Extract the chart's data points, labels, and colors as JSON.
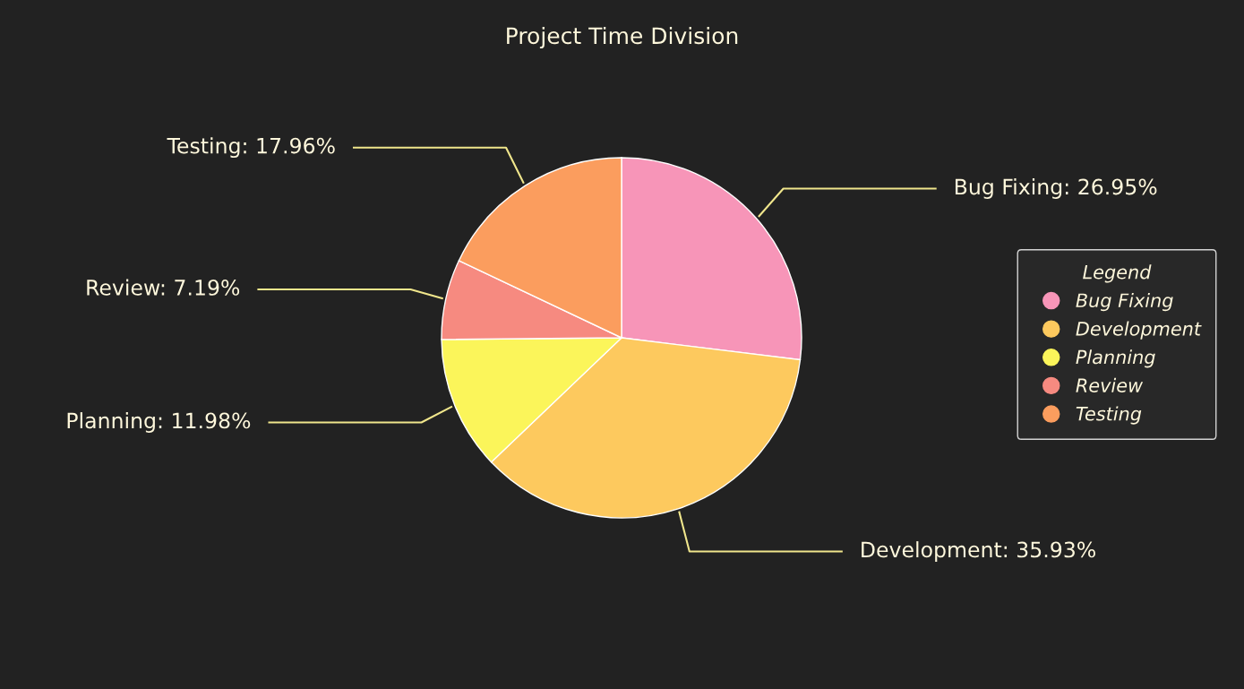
{
  "chart_data": {
    "type": "pie",
    "title": "Project Time Division",
    "categories": [
      "Bug Fixing",
      "Development",
      "Planning",
      "Review",
      "Testing"
    ],
    "values": [
      26.95,
      35.93,
      11.98,
      7.19,
      17.96
    ],
    "colors": [
      "#f795b8",
      "#fdc95e",
      "#fbf55a",
      "#f68a80",
      "#fb9d5e"
    ],
    "value_labels": [
      "Bug Fixing: 26.95%",
      "Development: 35.93%",
      "Planning: 11.98%",
      "Review: 7.19%",
      "Testing: 17.96%"
    ],
    "legend": "right",
    "legend_title": "Legend"
  }
}
